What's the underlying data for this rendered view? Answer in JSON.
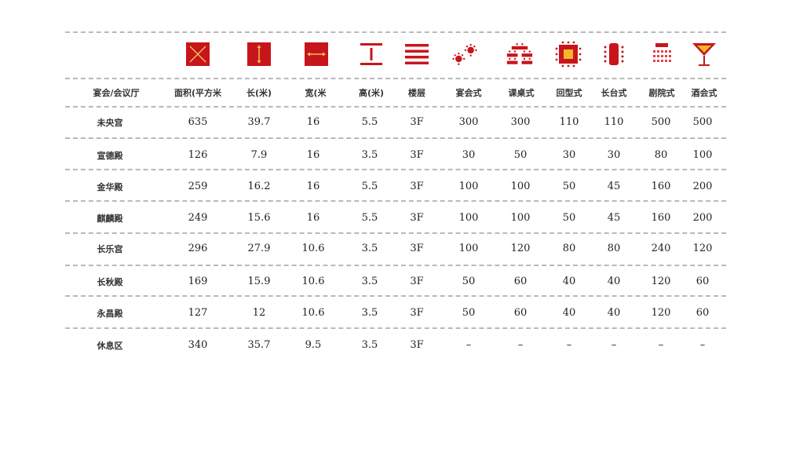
{
  "icons": {
    "area": "area-square-icon",
    "length": "length-square-icon",
    "width": "width-square-icon",
    "height": "height-i-beam-icon",
    "floor": "floor-stripes-icon",
    "banquet": "banquet-round-tables-icon",
    "classroom": "classroom-desks-icon",
    "u_shape": "u-shape-table-icon",
    "boardroom": "long-table-icon",
    "theater": "theater-seating-icon",
    "cocktail": "cocktail-glass-icon"
  },
  "accent_color": "#c8151b",
  "headers": [
    "宴会/会议厅",
    "面积(平方米",
    "长(米)",
    "宽(米",
    "高(米)",
    "楼层",
    "宴会式",
    "课桌式",
    "回型式",
    "长台式",
    "剧院式",
    "酒会式"
  ],
  "rows": [
    [
      "未央宫",
      "635",
      "39.7",
      "16",
      "5.5",
      "3F",
      "300",
      "300",
      "110",
      "110",
      "500",
      "500"
    ],
    [
      "宣德殿",
      "126",
      "7.9",
      "16",
      "3.5",
      "3F",
      "30",
      "50",
      "30",
      "30",
      "80",
      "100"
    ],
    [
      "金华殿",
      "259",
      "16.2",
      "16",
      "5.5",
      "3F",
      "100",
      "100",
      "50",
      "45",
      "160",
      "200"
    ],
    [
      "麒麟殿",
      "249",
      "15.6",
      "16",
      "5.5",
      "3F",
      "100",
      "100",
      "50",
      "45",
      "160",
      "200"
    ],
    [
      "长乐宫",
      "296",
      "27.9",
      "10.6",
      "3.5",
      "3F",
      "100",
      "120",
      "80",
      "80",
      "240",
      "120"
    ],
    [
      "长秋殿",
      "169",
      "15.9",
      "10.6",
      "3.5",
      "3F",
      "50",
      "60",
      "40",
      "40",
      "120",
      "60"
    ],
    [
      "永昌殿",
      "127",
      "12",
      "10.6",
      "3.5",
      "3F",
      "50",
      "60",
      "40",
      "40",
      "120",
      "60"
    ],
    [
      "休息区",
      "340",
      "35.7",
      "9.5",
      "3.5",
      "3F",
      "–",
      "–",
      "–",
      "–",
      "–",
      "–"
    ]
  ]
}
